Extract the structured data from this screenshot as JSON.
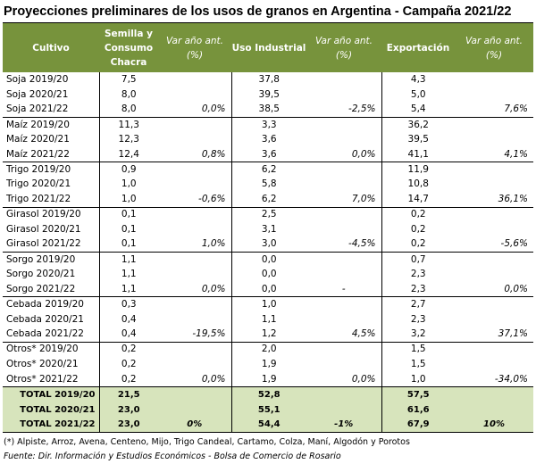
{
  "title": "Proyecciones preliminares de los usos de granos en Argentina - Campaña 2021/22",
  "headers": {
    "cultivo": "Cultivo",
    "semilla_l1": "Semilla y",
    "semilla_l2": "Consumo",
    "semilla_l3": "Chacra",
    "var1_l1": "Var año ant.",
    "var1_l2": "(%)",
    "industrial": "Uso Industrial",
    "var2_l1": "Var año ant.",
    "var2_l2": "(%)",
    "exportacion": "Exportación",
    "var3_l1": "Var año ant.",
    "var3_l2": "(%)"
  },
  "rows": [
    {
      "label": "Soja 2019/20",
      "semilla": "7,5",
      "var1": "",
      "industrial": "37,8",
      "var2": "",
      "export": "4,3",
      "var3": ""
    },
    {
      "label": "Soja 2020/21",
      "semilla": "8,0",
      "var1": "",
      "industrial": "39,5",
      "var2": "",
      "export": "5,0",
      "var3": ""
    },
    {
      "label": "Soja 2021/22",
      "semilla": "8,0",
      "var1": "0,0%",
      "industrial": "38,5",
      "var2": "-2,5%",
      "export": "5,4",
      "var3": "7,6%"
    },
    {
      "label": "Maíz 2019/20",
      "semilla": "11,3",
      "var1": "",
      "industrial": "3,3",
      "var2": "",
      "export": "36,2",
      "var3": ""
    },
    {
      "label": "Maíz 2020/21",
      "semilla": "12,3",
      "var1": "",
      "industrial": "3,6",
      "var2": "",
      "export": "39,5",
      "var3": ""
    },
    {
      "label": "Maíz 2021/22",
      "semilla": "12,4",
      "var1": "0,8%",
      "industrial": "3,6",
      "var2": "0,0%",
      "export": "41,1",
      "var3": "4,1%"
    },
    {
      "label": "Trigo 2019/20",
      "semilla": "0,9",
      "var1": "",
      "industrial": "6,2",
      "var2": "",
      "export": "11,9",
      "var3": ""
    },
    {
      "label": "Trigo 2020/21",
      "semilla": "1,0",
      "var1": "",
      "industrial": "5,8",
      "var2": "",
      "export": "10,8",
      "var3": ""
    },
    {
      "label": "Trigo 2021/22",
      "semilla": "1,0",
      "var1": "-0,6%",
      "industrial": "6,2",
      "var2": "7,0%",
      "export": "14,7",
      "var3": "36,1%"
    },
    {
      "label": "Girasol 2019/20",
      "semilla": "0,1",
      "var1": "",
      "industrial": "2,5",
      "var2": "",
      "export": "0,2",
      "var3": ""
    },
    {
      "label": "Girasol 2020/21",
      "semilla": "0,1",
      "var1": "",
      "industrial": "3,1",
      "var2": "",
      "export": "0,2",
      "var3": ""
    },
    {
      "label": "Girasol 2021/22",
      "semilla": "0,1",
      "var1": "1,0%",
      "industrial": "3,0",
      "var2": "-4,5%",
      "export": "0,2",
      "var3": "-5,6%"
    },
    {
      "label": "Sorgo 2019/20",
      "semilla": "1,1",
      "var1": "",
      "industrial": "0,0",
      "var2": "",
      "export": "0,7",
      "var3": ""
    },
    {
      "label": "Sorgo 2020/21",
      "semilla": "1,1",
      "var1": "",
      "industrial": "0,0",
      "var2": "",
      "export": "2,3",
      "var3": ""
    },
    {
      "label": "Sorgo 2021/22",
      "semilla": "1,1",
      "var1": "0,0%",
      "industrial": "0,0",
      "var2": "-",
      "export": "2,3",
      "var3": "0,0%"
    },
    {
      "label": "Cebada 2019/20",
      "semilla": "0,3",
      "var1": "",
      "industrial": "1,0",
      "var2": "",
      "export": "2,7",
      "var3": ""
    },
    {
      "label": "Cebada 2020/21",
      "semilla": "0,4",
      "var1": "",
      "industrial": "1,1",
      "var2": "",
      "export": "2,3",
      "var3": ""
    },
    {
      "label": "Cebada 2021/22",
      "semilla": "0,4",
      "var1": "-19,5%",
      "industrial": "1,2",
      "var2": "4,5%",
      "export": "3,2",
      "var3": "37,1%"
    },
    {
      "label": "Otros* 2019/20",
      "semilla": "0,2",
      "var1": "",
      "industrial": "2,0",
      "var2": "",
      "export": "1,5",
      "var3": ""
    },
    {
      "label": "Otros* 2020/21",
      "semilla": "0,2",
      "var1": "",
      "industrial": "1,9",
      "var2": "",
      "export": "1,5",
      "var3": ""
    },
    {
      "label": "Otros* 2021/22",
      "semilla": "0,2",
      "var1": "0,0%",
      "industrial": "1,9",
      "var2": "0,0%",
      "export": "1,0",
      "var3": "-34,0%"
    }
  ],
  "totals": [
    {
      "label": "TOTAL 2019/20",
      "semilla": "21,5",
      "var1": "",
      "industrial": "52,8",
      "var2": "",
      "export": "57,5",
      "var3": ""
    },
    {
      "label": "TOTAL 2020/21",
      "semilla": "23,0",
      "var1": "",
      "industrial": "55,1",
      "var2": "",
      "export": "61,6",
      "var3": ""
    },
    {
      "label": "TOTAL 2021/22",
      "semilla": "23,0",
      "var1": "0%",
      "industrial": "54,4",
      "var2": "-1%",
      "export": "67,9",
      "var3": "10%"
    }
  ],
  "footnote": "(*) Alpiste, Arroz, Avena, Centeno, Mijo, Trigo Candeal, Cartamo, Colza, Maní, Algodón y Porotos",
  "source": "Fuente: Dir. Información y Estudios Económicos - Bolsa de Comercio de Rosario",
  "colors": {
    "header_bg": "#77933c",
    "total_bg": "#d7e4bc"
  }
}
